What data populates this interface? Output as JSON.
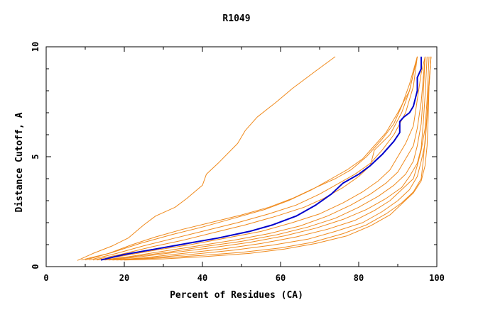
{
  "chart_data": {
    "type": "line",
    "title": "R1049",
    "xlabel": "Percent of Residues (CA)",
    "ylabel": "Distance Cutoff, A",
    "xlim": [
      0,
      100
    ],
    "ylim": [
      0,
      10
    ],
    "x_ticks": [
      "0",
      "20",
      "40",
      "60",
      "80",
      "100"
    ],
    "y_ticks": [
      "0",
      "5",
      "10"
    ],
    "grid": false,
    "legend": "none",
    "colors": {
      "models": "#f08a1c",
      "reference": "#0000cc",
      "axes": "#000000"
    },
    "series": [
      {
        "color": "#f08a1c",
        "points": [
          [
            8,
            0.28
          ],
          [
            12,
            0.6
          ],
          [
            17,
            0.95
          ],
          [
            21,
            1.3
          ],
          [
            25,
            1.9
          ],
          [
            28,
            2.3
          ],
          [
            33,
            2.7
          ],
          [
            36,
            3.1
          ],
          [
            40,
            3.7
          ],
          [
            41,
            4.2
          ],
          [
            44,
            4.7
          ],
          [
            49,
            5.6
          ],
          [
            51,
            6.2
          ],
          [
            54,
            6.8
          ],
          [
            59,
            7.5
          ],
          [
            63,
            8.1
          ],
          [
            69,
            8.9
          ],
          [
            74,
            9.55
          ]
        ]
      },
      {
        "color": "#f08a1c",
        "points": [
          [
            9,
            0.3
          ],
          [
            16,
            0.6
          ],
          [
            22,
            1.0
          ],
          [
            28,
            1.35
          ],
          [
            35,
            1.7
          ],
          [
            42,
            2.0
          ],
          [
            50,
            2.35
          ],
          [
            57,
            2.7
          ],
          [
            63,
            3.1
          ],
          [
            69,
            3.6
          ],
          [
            74,
            4.0
          ],
          [
            78,
            4.4
          ],
          [
            82,
            5.0
          ],
          [
            86,
            5.8
          ],
          [
            89,
            6.5
          ],
          [
            91,
            7.3
          ],
          [
            93,
            8.3
          ],
          [
            95,
            9.55
          ]
        ]
      },
      {
        "color": "#f08a1c",
        "points": [
          [
            10,
            0.3
          ],
          [
            17,
            0.65
          ],
          [
            24,
            1.05
          ],
          [
            32,
            1.45
          ],
          [
            40,
            1.8
          ],
          [
            48,
            2.2
          ],
          [
            56,
            2.6
          ],
          [
            62,
            3.0
          ],
          [
            68,
            3.5
          ],
          [
            73,
            4.0
          ],
          [
            77,
            4.4
          ],
          [
            81,
            4.9
          ],
          [
            84,
            5.5
          ],
          [
            87,
            6.1
          ],
          [
            90,
            7.0
          ],
          [
            93,
            8.0
          ],
          [
            95,
            9.55
          ]
        ]
      },
      {
        "color": "#f08a1c",
        "points": [
          [
            11,
            0.3
          ],
          [
            18,
            0.6
          ],
          [
            25,
            0.95
          ],
          [
            33,
            1.3
          ],
          [
            41,
            1.65
          ],
          [
            49,
            2.0
          ],
          [
            57,
            2.4
          ],
          [
            64,
            2.8
          ],
          [
            70,
            3.3
          ],
          [
            75,
            3.8
          ],
          [
            79,
            4.2
          ],
          [
            83,
            4.7
          ],
          [
            86,
            5.3
          ],
          [
            89,
            6.0
          ],
          [
            92,
            7.0
          ],
          [
            94,
            8.2
          ],
          [
            95,
            9.55
          ]
        ]
      },
      {
        "color": "#f08a1c",
        "points": [
          [
            12,
            0.3
          ],
          [
            19,
            0.55
          ],
          [
            27,
            0.9
          ],
          [
            35,
            1.2
          ],
          [
            43,
            1.55
          ],
          [
            51,
            1.9
          ],
          [
            59,
            2.3
          ],
          [
            66,
            2.7
          ],
          [
            71,
            3.1
          ],
          [
            76,
            3.6
          ],
          [
            80,
            4.1
          ],
          [
            83,
            4.6
          ],
          [
            84,
            5.3
          ],
          [
            88,
            6.0
          ],
          [
            91,
            7.0
          ],
          [
            93,
            8.0
          ],
          [
            95,
            9.55
          ]
        ]
      },
      {
        "color": "#f08a1c",
        "points": [
          [
            13,
            0.3
          ],
          [
            20,
            0.5
          ],
          [
            28,
            0.75
          ],
          [
            37,
            1.0
          ],
          [
            46,
            1.3
          ],
          [
            55,
            1.6
          ],
          [
            63,
            2.0
          ],
          [
            70,
            2.4
          ],
          [
            76,
            2.9
          ],
          [
            81,
            3.4
          ],
          [
            85,
            3.9
          ],
          [
            88,
            4.4
          ],
          [
            90,
            5.0
          ],
          [
            92,
            5.6
          ],
          [
            94,
            6.4
          ],
          [
            95,
            7.6
          ],
          [
            96,
            8.8
          ],
          [
            97,
            9.55
          ]
        ]
      },
      {
        "color": "#f08a1c",
        "points": [
          [
            14,
            0.3
          ],
          [
            21,
            0.45
          ],
          [
            30,
            0.7
          ],
          [
            39,
            0.95
          ],
          [
            48,
            1.2
          ],
          [
            57,
            1.5
          ],
          [
            65,
            1.85
          ],
          [
            72,
            2.3
          ],
          [
            78,
            2.8
          ],
          [
            83,
            3.3
          ],
          [
            87,
            3.8
          ],
          [
            90,
            4.3
          ],
          [
            92,
            4.9
          ],
          [
            94,
            5.5
          ],
          [
            95,
            6.3
          ],
          [
            96,
            7.5
          ],
          [
            97,
            9.55
          ]
        ]
      },
      {
        "color": "#f08a1c",
        "points": [
          [
            15,
            0.3
          ],
          [
            22,
            0.45
          ],
          [
            31,
            0.65
          ],
          [
            40,
            0.9
          ],
          [
            50,
            1.15
          ],
          [
            59,
            1.45
          ],
          [
            67,
            1.8
          ],
          [
            74,
            2.2
          ],
          [
            80,
            2.7
          ],
          [
            85,
            3.2
          ],
          [
            89,
            3.7
          ],
          [
            92,
            4.2
          ],
          [
            94,
            4.8
          ],
          [
            95,
            5.5
          ],
          [
            96,
            6.5
          ],
          [
            96.5,
            7.8
          ],
          [
            97,
            9.55
          ]
        ]
      },
      {
        "color": "#f08a1c",
        "points": [
          [
            16,
            0.3
          ],
          [
            24,
            0.45
          ],
          [
            33,
            0.65
          ],
          [
            42,
            0.85
          ],
          [
            52,
            1.1
          ],
          [
            61,
            1.4
          ],
          [
            69,
            1.75
          ],
          [
            76,
            2.15
          ],
          [
            82,
            2.6
          ],
          [
            87,
            3.1
          ],
          [
            91,
            3.6
          ],
          [
            93,
            4.1
          ],
          [
            95,
            4.7
          ],
          [
            96,
            5.4
          ],
          [
            96.5,
            6.5
          ],
          [
            97,
            7.8
          ],
          [
            97.5,
            9.55
          ]
        ]
      },
      {
        "color": "#f08a1c",
        "points": [
          [
            17,
            0.3
          ],
          [
            25,
            0.4
          ],
          [
            35,
            0.6
          ],
          [
            45,
            0.8
          ],
          [
            55,
            1.05
          ],
          [
            64,
            1.35
          ],
          [
            72,
            1.7
          ],
          [
            79,
            2.1
          ],
          [
            84,
            2.55
          ],
          [
            88,
            3.0
          ],
          [
            91,
            3.5
          ],
          [
            94,
            4.0
          ],
          [
            95,
            4.6
          ],
          [
            96,
            5.3
          ],
          [
            97,
            6.3
          ],
          [
            97.5,
            7.6
          ],
          [
            98,
            9.55
          ]
        ]
      },
      {
        "color": "#f08a1c",
        "points": [
          [
            18,
            0.3
          ],
          [
            27,
            0.4
          ],
          [
            37,
            0.55
          ],
          [
            48,
            0.75
          ],
          [
            58,
            0.98
          ],
          [
            67,
            1.25
          ],
          [
            74,
            1.6
          ],
          [
            81,
            2.0
          ],
          [
            86,
            2.5
          ],
          [
            90,
            3.0
          ],
          [
            93,
            3.5
          ],
          [
            95,
            4.1
          ],
          [
            96,
            4.8
          ],
          [
            97,
            5.6
          ],
          [
            97.5,
            6.8
          ],
          [
            98,
            8.2
          ],
          [
            98.5,
            9.55
          ]
        ]
      },
      {
        "color": "#f08a1c",
        "points": [
          [
            19,
            0.3
          ],
          [
            28,
            0.38
          ],
          [
            39,
            0.5
          ],
          [
            50,
            0.65
          ],
          [
            60,
            0.85
          ],
          [
            68,
            1.1
          ],
          [
            76,
            1.5
          ],
          [
            82,
            1.9
          ],
          [
            87,
            2.4
          ],
          [
            91,
            2.9
          ],
          [
            94,
            3.4
          ],
          [
            96,
            4.0
          ],
          [
            96.5,
            4.8
          ],
          [
            97,
            5.8
          ],
          [
            97.5,
            7.0
          ],
          [
            98,
            8.4
          ],
          [
            98.5,
            9.55
          ]
        ]
      },
      {
        "color": "#f08a1c",
        "points": [
          [
            20,
            0.3
          ],
          [
            30,
            0.35
          ],
          [
            40,
            0.45
          ],
          [
            52,
            0.6
          ],
          [
            61,
            0.8
          ],
          [
            69,
            1.05
          ],
          [
            77,
            1.4
          ],
          [
            83,
            1.85
          ],
          [
            88,
            2.35
          ],
          [
            91,
            2.85
          ],
          [
            94,
            3.35
          ],
          [
            96,
            3.9
          ],
          [
            97,
            4.6
          ],
          [
            97.5,
            5.5
          ],
          [
            97.8,
            6.8
          ],
          [
            98,
            8.2
          ],
          [
            98.5,
            9.55
          ]
        ]
      },
      {
        "color": "#0000cc",
        "reference": true,
        "points": [
          [
            14,
            0.3
          ],
          [
            20,
            0.55
          ],
          [
            28,
            0.8
          ],
          [
            36,
            1.05
          ],
          [
            44,
            1.3
          ],
          [
            52,
            1.6
          ],
          [
            58,
            1.9
          ],
          [
            64,
            2.3
          ],
          [
            69,
            2.8
          ],
          [
            73,
            3.3
          ],
          [
            76,
            3.8
          ],
          [
            80,
            4.2
          ],
          [
            83,
            4.6
          ],
          [
            86,
            5.1
          ],
          [
            89,
            5.7
          ],
          [
            90.5,
            6.1
          ],
          [
            90.5,
            6.6
          ],
          [
            91.5,
            6.8
          ],
          [
            93,
            7.0
          ],
          [
            94,
            7.3
          ],
          [
            95,
            8.0
          ],
          [
            95,
            8.6
          ],
          [
            96,
            9.0
          ],
          [
            96,
            9.55
          ]
        ]
      }
    ]
  }
}
